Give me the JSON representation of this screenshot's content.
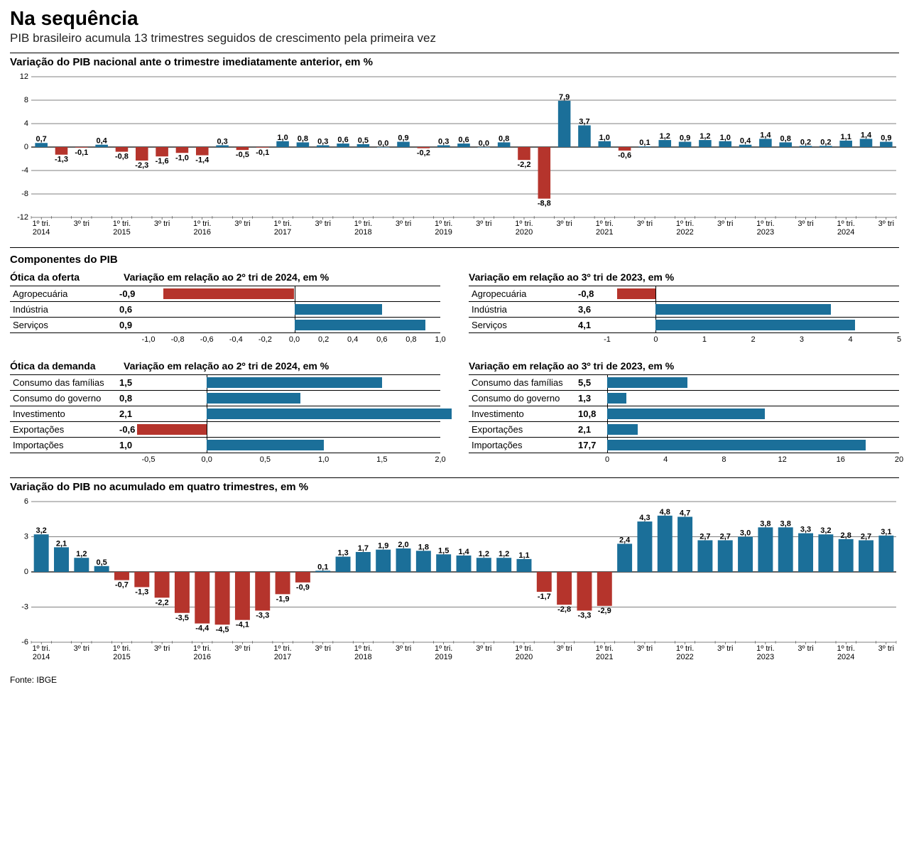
{
  "colors": {
    "positive": "#1b6f99",
    "negative": "#b5342c",
    "grid": "#000000",
    "bg": "#ffffff",
    "text": "#000000"
  },
  "typography": {
    "headline_pt": 28,
    "headline_weight": 700,
    "subhead_pt": 17,
    "panel_title_pt": 15,
    "panel_title_weight": 700,
    "axis_label_pt": 11,
    "value_label_pt": 11,
    "table_pt": 13
  },
  "header": {
    "title": "Na sequência",
    "subtitle": "PIB brasileiro acumula 13 trimestres seguidos de crescimento pela primeira vez"
  },
  "source": "Fonte: IBGE",
  "chart_top": {
    "type": "bar",
    "title": "Variação do PIB nacional ante o trimestre imediatamente anterior, em %",
    "ylim": [
      -12,
      12
    ],
    "ytick_step": 4,
    "grid_color": "#000000",
    "bar_width": 0.62,
    "label_fontsize": 11,
    "years": [
      "2014",
      "2015",
      "2016",
      "2017",
      "2018",
      "2019",
      "2020",
      "2021",
      "2022",
      "2023",
      "2024"
    ],
    "x_tick_labels": [
      "1º tri.",
      "3º tri",
      "1º tri.",
      "3º tri",
      "1º tri.",
      "3º tri",
      "1º tri.",
      "3º tri",
      "1º tri.",
      "3º tri",
      "1º tri.",
      "3º tri",
      "1º tri.",
      "3º tri",
      "1º tri.",
      "3º tri",
      "1º tri.",
      "3º tri",
      "1º tri.",
      "3º tri",
      "1º tri.",
      "3º tri"
    ],
    "values": [
      0.7,
      -1.3,
      -0.1,
      0.4,
      -0.8,
      -2.3,
      -1.6,
      -1.0,
      -1.4,
      0.3,
      -0.5,
      -0.1,
      1.0,
      0.8,
      0.3,
      0.6,
      0.5,
      0.0,
      0.9,
      -0.2,
      0.3,
      0.6,
      0.0,
      0.8,
      -2.2,
      -8.8,
      7.9,
      3.7,
      1.0,
      -0.6,
      0.1,
      1.2,
      0.9,
      1.2,
      1.0,
      0.4,
      1.4,
      0.8,
      0.2,
      0.2,
      1.1,
      1.4,
      0.9
    ],
    "decimal_sep": ","
  },
  "components": {
    "header": "Componentes do PIB",
    "supply_label": "Ótica da oferta",
    "demand_label": "Ótica da demanda",
    "supply_qoq": {
      "title": "Variação em relação ao 2º tri de 2024, em %",
      "xlim": [
        -1.0,
        1.0
      ],
      "ticks": [
        "-1,0",
        "-0,8",
        "-0,6",
        "-0,4",
        "-0,2",
        "0,0",
        "0,2",
        "0,4",
        "0,6",
        "0,8",
        "1,0"
      ],
      "rows": [
        {
          "label": "Agropecuária",
          "value": -0.9,
          "text": "-0,9"
        },
        {
          "label": "Indústria",
          "value": 0.6,
          "text": "0,6"
        },
        {
          "label": "Serviços",
          "value": 0.9,
          "text": "0,9"
        }
      ]
    },
    "supply_yoy": {
      "title": "Variação em relação ao 3º tri de 2023, em %",
      "xlim": [
        -1,
        5
      ],
      "ticks": [
        "-1",
        "0",
        "1",
        "2",
        "3",
        "4",
        "5"
      ],
      "rows": [
        {
          "label": "Agropecuária",
          "value": -0.8,
          "text": "-0,8"
        },
        {
          "label": "Indústria",
          "value": 3.6,
          "text": "3,6"
        },
        {
          "label": "Serviços",
          "value": 4.1,
          "text": "4,1"
        }
      ]
    },
    "demand_qoq": {
      "title": "Variação em relação ao 2º tri de 2024, em %",
      "xlim": [
        -0.5,
        2.0
      ],
      "ticks": [
        "-0,5",
        "0,0",
        "0,5",
        "1,0",
        "1,5",
        "2,0"
      ],
      "rows": [
        {
          "label": "Consumo das famílias",
          "value": 1.5,
          "text": "1,5"
        },
        {
          "label": "Consumo do governo",
          "value": 0.8,
          "text": "0,8"
        },
        {
          "label": "Investimento",
          "value": 2.1,
          "text": "2,1"
        },
        {
          "label": "Exportações",
          "value": -0.6,
          "text": "-0,6"
        },
        {
          "label": "Importações",
          "value": 1.0,
          "text": "1,0"
        }
      ]
    },
    "demand_yoy": {
      "title": "Variação em relação ao 3º tri de 2023, em %",
      "xlim": [
        0,
        20
      ],
      "ticks": [
        "0",
        "4",
        "8",
        "12",
        "16",
        "20"
      ],
      "rows": [
        {
          "label": "Consumo das famílias",
          "value": 5.5,
          "text": "5,5"
        },
        {
          "label": "Consumo do governo",
          "value": 1.3,
          "text": "1,3"
        },
        {
          "label": "Investimento",
          "value": 10.8,
          "text": "10,8"
        },
        {
          "label": "Exportações",
          "value": 2.1,
          "text": "2,1"
        },
        {
          "label": "Importações",
          "value": 17.7,
          "text": "17,7"
        }
      ]
    }
  },
  "chart_bottom": {
    "type": "bar",
    "title": "Variação do PIB no acumulado em quatro trimestres, em %",
    "ylim": [
      -6,
      6
    ],
    "ytick_step": 3,
    "bar_width": 0.74,
    "label_fontsize": 11,
    "years": [
      "2014",
      "2015",
      "2016",
      "2017",
      "2018",
      "2019",
      "2020",
      "2021",
      "2022",
      "2023",
      "2024"
    ],
    "x_tick_labels": [
      "1º tri.",
      "3º tri",
      "1º tri.",
      "3º tri",
      "1º tri.",
      "3º tri",
      "1º tri.",
      "3º tri",
      "1º tri.",
      "3º tri",
      "1º tri.",
      "3º tri",
      "1º tri.",
      "3º tri",
      "1º tri.",
      "3º tri",
      "1º tri.",
      "3º tri",
      "1º tri.",
      "3º tri",
      "1º tri.",
      "3º tri"
    ],
    "values": [
      3.2,
      2.1,
      1.2,
      0.5,
      -0.7,
      -1.3,
      -2.2,
      -3.5,
      -4.4,
      -4.5,
      -4.1,
      -3.3,
      -1.9,
      -0.9,
      0.1,
      1.3,
      1.7,
      1.9,
      2.0,
      1.8,
      1.5,
      1.4,
      1.2,
      1.2,
      1.1,
      -1.7,
      -2.8,
      -3.3,
      -2.9,
      2.4,
      4.3,
      4.8,
      4.7,
      2.7,
      2.7,
      3.0,
      3.8,
      3.8,
      3.3,
      3.2,
      2.8,
      2.7,
      3.1
    ],
    "decimal_sep": ","
  }
}
